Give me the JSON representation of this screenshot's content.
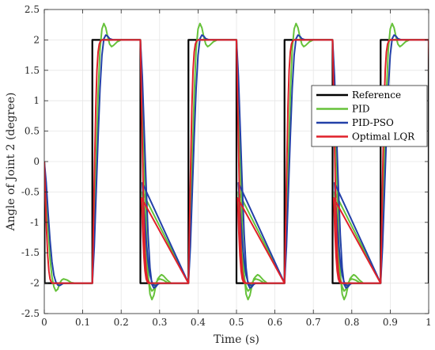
{
  "chart_data": {
    "type": "line",
    "title": "",
    "xlabel": "Time (s)",
    "ylabel": "Angle of Joint 2 (degree)",
    "xlim": [
      0,
      1
    ],
    "ylim": [
      -2.5,
      2.5
    ],
    "x_ticks": [
      0,
      0.1,
      0.2,
      0.3,
      0.4,
      0.5,
      0.6,
      0.7,
      0.8,
      0.9,
      1
    ],
    "y_ticks": [
      -2.5,
      -2,
      -1.5,
      -1,
      -0.5,
      0,
      0.5,
      1,
      1.5,
      2,
      2.5
    ],
    "x_tick_labels": [
      "0",
      "0.1",
      "0.2",
      "0.3",
      "0.4",
      "0.5",
      "0.6",
      "0.7",
      "0.8",
      "0.9",
      "1"
    ],
    "y_tick_labels": [
      "-2.5",
      "-2",
      "-1.5",
      "-1",
      "-0.5",
      "0",
      "0.5",
      "1",
      "1.5",
      "2",
      "2.5"
    ],
    "grid": true,
    "legend_position": "right",
    "series": [
      {
        "name": "Reference",
        "color": "#000000",
        "x": [
          0,
          0.001,
          0.125,
          0.125,
          0.25,
          0.25,
          0.375,
          0.375,
          0.5,
          0.5,
          0.625,
          0.625,
          0.75,
          0.75,
          0.875,
          0.875,
          1.0,
          1.0
        ],
        "y": [
          0,
          -2,
          -2,
          2,
          2,
          -2,
          -2,
          2,
          2,
          -2,
          -2,
          2,
          2,
          -2,
          -2,
          2,
          2,
          -2
        ]
      },
      {
        "name": "PID",
        "color": "#66c23a",
        "x": [
          0,
          0.005,
          0.01,
          0.015,
          0.02,
          0.025,
          0.03,
          0.035,
          0.04,
          0.045,
          0.05,
          0.06,
          0.07,
          0.08,
          0.1,
          0.125,
          0.13,
          0.135,
          0.14,
          0.145,
          0.15,
          0.155,
          0.16,
          0.165,
          0.17,
          0.175,
          0.18,
          0.19,
          0.2,
          0.22,
          0.25,
          0.255,
          0.26,
          0.265,
          0.27,
          0.275,
          0.28,
          0.285,
          0.29,
          0.295,
          0.3,
          0.305,
          0.31,
          0.32,
          0.33,
          0.35,
          0.375
        ],
        "y": [
          0,
          -0.5,
          -1.1,
          -1.6,
          -1.9,
          -2.06,
          -2.13,
          -2.1,
          -2.0,
          -1.95,
          -1.93,
          -1.95,
          -1.99,
          -2.0,
          -2.0,
          -2.0,
          -1.2,
          0.0,
          1.1,
          1.85,
          2.18,
          2.27,
          2.2,
          2.05,
          1.93,
          1.89,
          1.91,
          1.97,
          2.0,
          2.0,
          2.0,
          1.2,
          0.0,
          -1.1,
          -1.85,
          -2.18,
          -2.27,
          -2.2,
          -2.05,
          -1.93,
          -1.89,
          -1.86,
          -1.88,
          -1.95,
          -2.0,
          -2.0,
          -2.0
        ]
      },
      {
        "name": "PID-PSO",
        "color": "#2340a8",
        "x": [
          0,
          0.005,
          0.01,
          0.015,
          0.02,
          0.025,
          0.03,
          0.035,
          0.04,
          0.045,
          0.05,
          0.06,
          0.08,
          0.1,
          0.125,
          0.13,
          0.135,
          0.14,
          0.145,
          0.15,
          0.155,
          0.16,
          0.165,
          0.17,
          0.18,
          0.2,
          0.25,
          0.255,
          0.26,
          0.265,
          0.27,
          0.275,
          0.28,
          0.285,
          0.29,
          0.295,
          0.3,
          0.31,
          0.33,
          0.375
        ],
        "y": [
          0,
          -0.35,
          -0.85,
          -1.3,
          -1.65,
          -1.87,
          -1.98,
          -2.03,
          -2.04,
          -2.02,
          -2.0,
          -2.0,
          -2.0,
          -2.0,
          -2.0,
          -1.4,
          -0.5,
          0.4,
          1.2,
          1.75,
          2.02,
          2.08,
          2.06,
          2.02,
          2.0,
          2.0,
          2.0,
          1.4,
          0.5,
          -0.4,
          -1.2,
          -1.75,
          -2.02,
          -2.08,
          -2.06,
          -2.02,
          -2.0,
          -2.0,
          -2.0,
          -2.0
        ]
      },
      {
        "name": "Optimal LQR",
        "color": "#e0202a",
        "x": [
          0,
          0.003,
          0.006,
          0.009,
          0.012,
          0.015,
          0.018,
          0.021,
          0.025,
          0.03,
          0.04,
          0.06,
          0.1,
          0.125,
          0.128,
          0.131,
          0.134,
          0.137,
          0.14,
          0.143,
          0.146,
          0.15,
          0.155,
          0.165,
          0.2,
          0.25,
          0.253,
          0.256,
          0.259,
          0.262,
          0.265,
          0.268,
          0.271,
          0.275,
          0.28,
          0.29,
          0.375
        ],
        "y": [
          0,
          -0.6,
          -1.15,
          -1.55,
          -1.8,
          -1.93,
          -1.98,
          -2.0,
          -2.0,
          -2.0,
          -2.0,
          -2.0,
          -2.0,
          -2.0,
          -1.0,
          0.0,
          0.9,
          1.5,
          1.8,
          1.93,
          1.98,
          2.0,
          2.0,
          2.0,
          2.0,
          2.0,
          1.0,
          0.0,
          -0.9,
          -1.5,
          -1.8,
          -1.93,
          -1.98,
          -2.0,
          -2.0,
          -2.0,
          -2.0
        ]
      }
    ]
  }
}
